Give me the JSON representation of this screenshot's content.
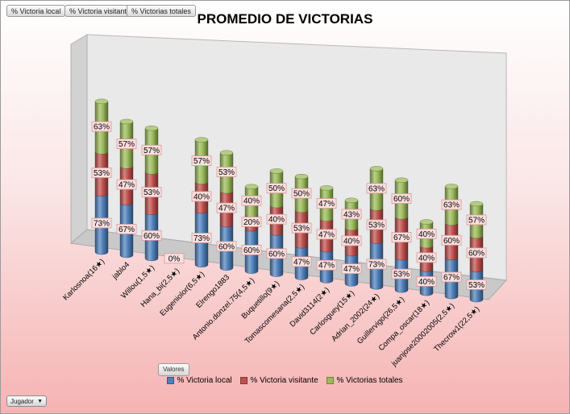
{
  "field_buttons": [
    "% Victoria local",
    "% Victoria visitante",
    "% Victorias totales"
  ],
  "filter_button": "Valores",
  "row_button": "Jugador",
  "colors": {
    "local": "#4f81bd",
    "visitante": "#c0504d",
    "totales": "#9bbb59",
    "label_bg": "#fbe0e0",
    "label_border": "#d99795"
  },
  "chart_data": {
    "type": "bar",
    "stacked": true,
    "three_d": true,
    "title": "PROMEDIO DE VICTORIAS",
    "categories": [
      "Karlosnoa(16★)",
      "jablo4",
      "Willou(1,5★)",
      "Hana_bi(2,5★)",
      "Eugeniolor(6,5★)",
      "Elrengo1883",
      "Antonio.donzel.75(4,5★)",
      "Buquetillo(9★)",
      "Tomascomesana(2,5★)",
      "David3114(2★)",
      "Carlosguey(15★)",
      "Adrian_2002(24★)",
      "Guillervigo(26,5★)",
      "Compa_oscar(18★)",
      "juanjose20002005(2,5★)",
      "Thecrow1(22,5★)"
    ],
    "series": [
      {
        "name": "% Victoria local",
        "values": [
          73,
          67,
          60,
          0,
          73,
          60,
          60,
          60,
          47,
          47,
          47,
          73,
          53,
          40,
          67,
          53
        ]
      },
      {
        "name": "% Victoria visitante",
        "values": [
          53,
          47,
          53,
          null,
          40,
          47,
          20,
          40,
          53,
          47,
          40,
          53,
          67,
          40,
          60,
          60
        ]
      },
      {
        "name": "% Victorias totales",
        "values": [
          63,
          57,
          57,
          null,
          57,
          53,
          40,
          50,
          50,
          47,
          43,
          63,
          60,
          40,
          63,
          57
        ]
      }
    ],
    "data_labels": [
      [
        "73%",
        "67%",
        "60%",
        "0%",
        "73%",
        "60%",
        "60%",
        "60%",
        "47%",
        "47%",
        "47%",
        "73%",
        "53%",
        "40%",
        "67%",
        "53%"
      ],
      [
        "53%",
        "47%",
        "53%",
        "",
        "40%",
        "47%",
        "20%",
        "40%",
        "53%",
        "47%",
        "40%",
        "53%",
        "67%",
        "40%",
        "60%",
        "60%"
      ],
      [
        "63%",
        "57%",
        "57%",
        "",
        "57%",
        "53%",
        "40%",
        "50%",
        "50%",
        "47%",
        "43%",
        "63%",
        "60%",
        "40%",
        "63%",
        "57%"
      ]
    ],
    "legend_position": "bottom"
  }
}
